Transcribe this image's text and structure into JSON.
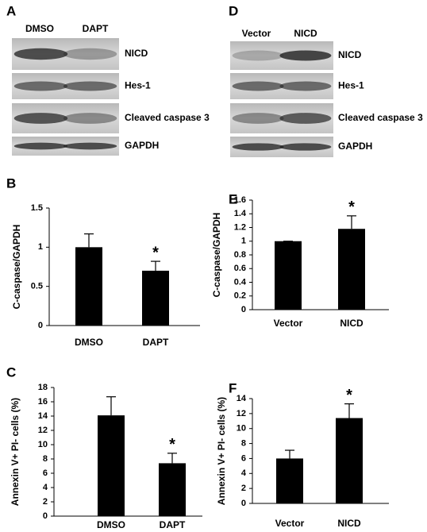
{
  "blots": [
    {
      "panel": "A",
      "lanes": [
        "DMSO",
        "DAPT"
      ],
      "bands": [
        "NICD",
        "Hes-1",
        "Cleaved caspase 3",
        "GAPDH"
      ]
    },
    {
      "panel": "D",
      "lanes": [
        "Vector",
        "NICD"
      ],
      "bands": [
        "NICD",
        "Hes-1",
        "Cleaved caspase 3",
        "GAPDH"
      ]
    }
  ],
  "chart_data": [
    {
      "type": "bar",
      "panel": "B",
      "y_label": "C-caspase/GAPDH",
      "categories": [
        "DMSO",
        "DAPT"
      ],
      "values": [
        1.0,
        0.7
      ],
      "errors": [
        0.17,
        0.12
      ],
      "significance": [
        null,
        "*"
      ],
      "color": "#000000",
      "ylim": [
        0,
        1.5
      ],
      "yticks": [
        0,
        0.5,
        1,
        1.5
      ]
    },
    {
      "type": "bar",
      "panel": "E",
      "y_label": "C-caspase/GAPDH",
      "categories": [
        "Vector",
        "NICD"
      ],
      "values": [
        1.0,
        1.18
      ],
      "errors": [
        0,
        0.19
      ],
      "significance": [
        null,
        "*"
      ],
      "color": "#000000",
      "ylim": [
        0,
        1.6
      ],
      "yticks": [
        0,
        0.2,
        0.4,
        0.6,
        0.8,
        1,
        1.2,
        1.4,
        1.6
      ]
    },
    {
      "type": "bar",
      "panel": "C",
      "y_label": "Annexin V+ PI- cells (%)",
      "categories": [
        "DMSO",
        "DAPT"
      ],
      "values": [
        14.1,
        7.4
      ],
      "errors": [
        2.6,
        1.4
      ],
      "significance": [
        null,
        "*"
      ],
      "color": "#000000",
      "ylim": [
        0,
        18
      ],
      "yticks": [
        0,
        2,
        4,
        6,
        8,
        10,
        12,
        14,
        16,
        18
      ]
    },
    {
      "type": "bar",
      "panel": "F",
      "y_label": "Annexin V+ PI- cells (%)",
      "categories": [
        "Vector",
        "NICD"
      ],
      "values": [
        6.0,
        11.4
      ],
      "errors": [
        1.1,
        1.9
      ],
      "significance": [
        null,
        "*"
      ],
      "color": "#000000",
      "ylim": [
        0,
        14
      ],
      "yticks": [
        0,
        2,
        4,
        6,
        8,
        10,
        12,
        14
      ]
    }
  ]
}
